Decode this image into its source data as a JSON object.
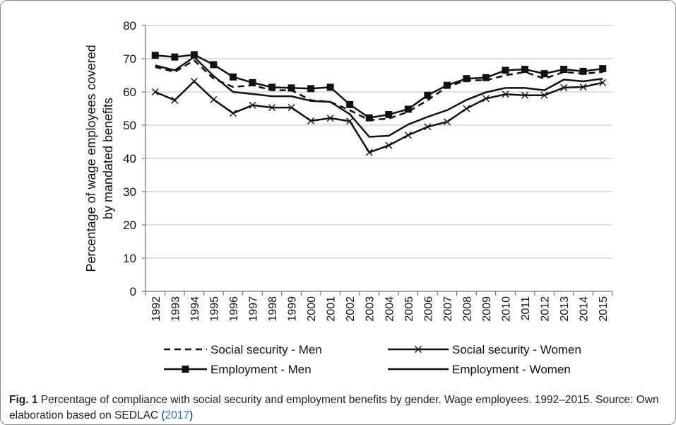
{
  "chart_data": {
    "type": "line",
    "ylabel_lines": [
      "Percentage of wage employees covered",
      "by mandated benefits"
    ],
    "ylim": [
      0,
      80
    ],
    "yticks": [
      0,
      10,
      20,
      30,
      40,
      50,
      60,
      70,
      80
    ],
    "x": [
      "1992",
      "1993",
      "1994",
      "1995",
      "1996",
      "1997",
      "1998",
      "1999",
      "2000",
      "2001",
      "2002",
      "2003",
      "2004",
      "2005",
      "2006",
      "2007",
      "2008",
      "2009",
      "2010",
      "2011",
      "2012",
      "2013",
      "2014",
      "2015"
    ],
    "grid": "horizontal",
    "legend_position": "bottom",
    "series": [
      {
        "name": "Social security - Men",
        "style": "dashed",
        "marker": "none",
        "values": [
          67.5,
          66.0,
          69.5,
          64.0,
          61.5,
          62.0,
          60.5,
          60.5,
          57.5,
          57.0,
          54.5,
          51.5,
          52.0,
          54.0,
          57.5,
          61.5,
          63.5,
          63.5,
          65.0,
          66.0,
          64.0,
          66.0,
          65.5,
          66.0
        ]
      },
      {
        "name": "Social security - Women",
        "style": "solid",
        "marker": "x",
        "values": [
          60.0,
          57.5,
          63.2,
          57.7,
          53.6,
          56.0,
          55.3,
          55.3,
          51.3,
          52.1,
          51.2,
          41.8,
          43.9,
          47.0,
          49.5,
          51.0,
          55.0,
          58.0,
          59.3,
          59.0,
          59.0,
          61.3,
          61.5,
          62.8
        ]
      },
      {
        "name": "Employment - Men",
        "style": "solid",
        "marker": "square",
        "values": [
          71.0,
          70.5,
          71.2,
          68.2,
          64.5,
          62.8,
          61.4,
          61.2,
          61.0,
          61.4,
          56.2,
          52.2,
          53.2,
          54.8,
          59.0,
          62.0,
          64.0,
          64.3,
          66.5,
          66.8,
          65.5,
          66.8,
          66.2,
          67.0
        ]
      },
      {
        "name": "Employment - Women",
        "style": "solid",
        "marker": "none",
        "values": [
          68.0,
          66.5,
          70.5,
          64.8,
          60.0,
          59.4,
          58.7,
          58.7,
          57.3,
          57.0,
          53.3,
          46.5,
          46.8,
          50.2,
          52.5,
          54.5,
          57.6,
          59.9,
          61.2,
          61.2,
          60.5,
          63.7,
          63.2,
          64.0
        ]
      }
    ]
  },
  "caption": {
    "label": "Fig. 1",
    "text": " Percentage of compliance with social security and employment benefits by gender. Wage employees. 1992–2015. Source: Own elaboration based on SEDLAC (",
    "ref": "2017",
    "close": ")"
  }
}
